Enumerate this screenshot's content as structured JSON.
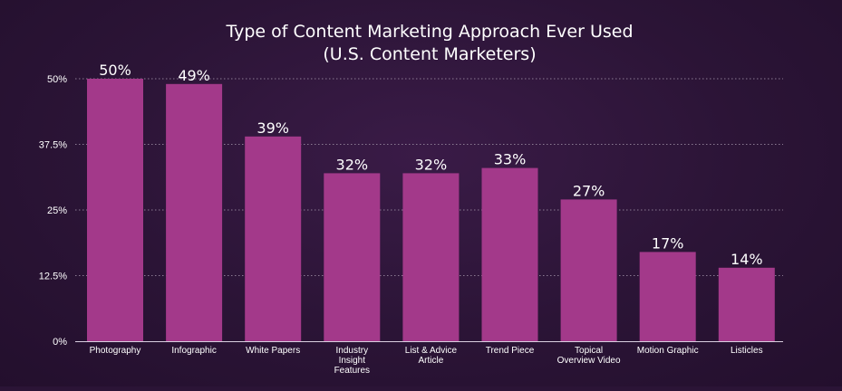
{
  "chart_data": {
    "type": "bar",
    "title": "Type of Content Marketing Approach Ever Used",
    "subtitle": "(U.S. Content Marketers)",
    "xlabel": "",
    "ylabel": "",
    "ylim": [
      0,
      50
    ],
    "yticks": [
      {
        "value": 0,
        "label": "0%"
      },
      {
        "value": 12.5,
        "label": "12.5%"
      },
      {
        "value": 25,
        "label": "25%"
      },
      {
        "value": 37.5,
        "label": "37.5%"
      },
      {
        "value": 50,
        "label": "50%"
      }
    ],
    "grid": true,
    "categories": [
      "Photography",
      "Infographic",
      "White Papers",
      "Industry Insight Features",
      "List & Advice Article",
      "Trend Piece",
      "Topical Overview Video",
      "Motion Graphic",
      "Listicles"
    ],
    "category_lines": [
      [
        "Photography"
      ],
      [
        "Infographic"
      ],
      [
        "White Papers"
      ],
      [
        "Industry",
        "Insight",
        "Features"
      ],
      [
        "List & Advice",
        "Article"
      ],
      [
        "Trend Piece"
      ],
      [
        "Topical",
        "Overview Video"
      ],
      [
        "Motion Graphic"
      ],
      [
        "Listicles"
      ]
    ],
    "values": [
      50,
      49,
      39,
      32,
      32,
      33,
      27,
      17,
      14
    ],
    "data_labels": [
      "50%",
      "49%",
      "39%",
      "32%",
      "32%",
      "33%",
      "27%",
      "17%",
      "14%"
    ],
    "colors": {
      "bar": "#a3398a",
      "background": "#2b1436",
      "grid": "#8a7a92",
      "text": "#ffffff"
    }
  }
}
